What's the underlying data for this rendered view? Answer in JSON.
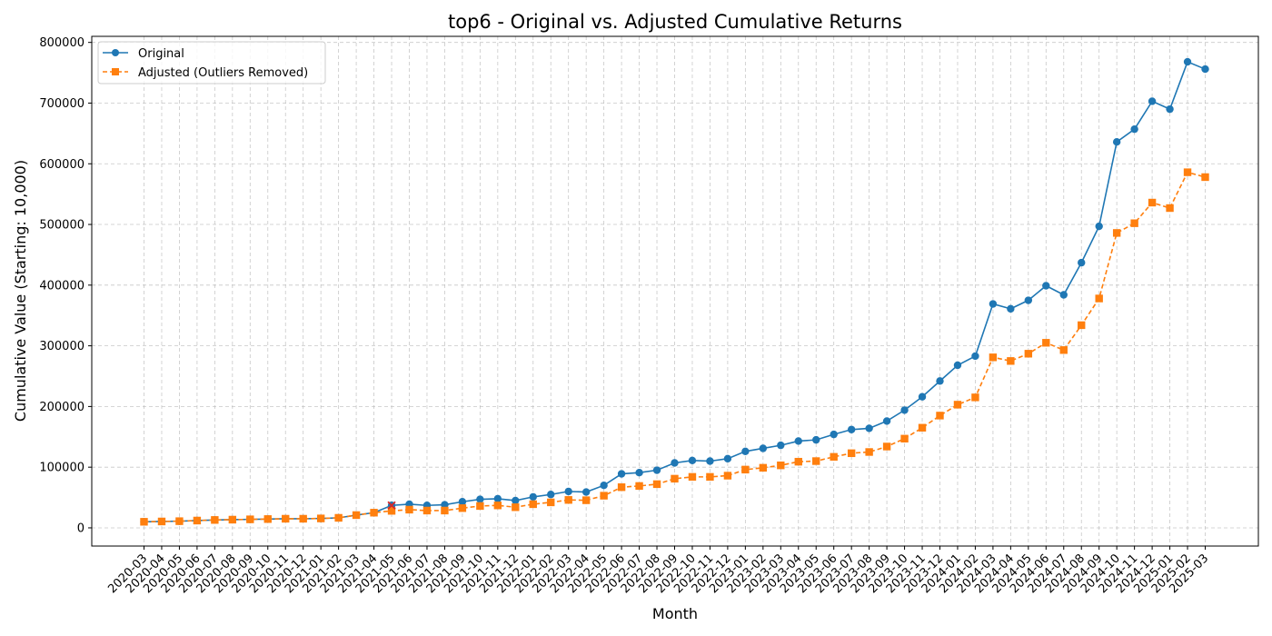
{
  "chart_data": {
    "type": "line",
    "title": "top6 - Original vs. Adjusted Cumulative Returns",
    "xlabel": "Month",
    "ylabel": "Cumulative Value (Starting: 10,000)",
    "ylim": [
      -30000,
      810000
    ],
    "yticks": [
      0,
      100000,
      200000,
      300000,
      400000,
      500000,
      600000,
      700000,
      800000
    ],
    "grid": true,
    "legend_position": "top-left",
    "categories": [
      "2020-03",
      "2020-04",
      "2020-05",
      "2020-06",
      "2020-07",
      "2020-08",
      "2020-09",
      "2020-10",
      "2020-11",
      "2020-12",
      "2021-01",
      "2021-02",
      "2021-03",
      "2021-04",
      "2021-05",
      "2021-06",
      "2021-07",
      "2021-08",
      "2021-09",
      "2021-10",
      "2021-11",
      "2021-12",
      "2022-01",
      "2022-02",
      "2022-03",
      "2022-04",
      "2022-05",
      "2022-06",
      "2022-07",
      "2022-08",
      "2022-09",
      "2022-10",
      "2022-11",
      "2022-12",
      "2023-01",
      "2023-02",
      "2023-03",
      "2023-04",
      "2023-05",
      "2023-06",
      "2023-07",
      "2023-08",
      "2023-09",
      "2023-10",
      "2023-11",
      "2023-12",
      "2024-01",
      "2024-02",
      "2024-03",
      "2024-04",
      "2024-05",
      "2024-06",
      "2024-07",
      "2024-08",
      "2024-09",
      "2024-10",
      "2024-11",
      "2024-12",
      "2025-01",
      "2025-02",
      "2025-03"
    ],
    "series": [
      {
        "name": "Original",
        "color": "#1f77b4",
        "marker": "circle",
        "line_style": "solid",
        "values": [
          10000,
          10500,
          11000,
          12000,
          13000,
          13500,
          14000,
          14500,
          15000,
          15000,
          15500,
          16500,
          21000,
          25000,
          37000,
          39000,
          37000,
          38000,
          43000,
          47000,
          48000,
          45000,
          51000,
          55000,
          60000,
          59000,
          70000,
          89000,
          91000,
          95000,
          107000,
          111000,
          110000,
          114000,
          126000,
          131000,
          136000,
          143000,
          145000,
          154000,
          162000,
          164000,
          176000,
          194000,
          216000,
          242000,
          268000,
          283000,
          369000,
          361000,
          375000,
          399000,
          384000,
          437000,
          497000,
          636000,
          657000,
          703000,
          690000,
          768000,
          756000
        ]
      },
      {
        "name": "Adjusted (Outliers Removed)",
        "color": "#ff7f0e",
        "marker": "square",
        "line_style": "dashed",
        "values": [
          10000,
          10500,
          11000,
          12000,
          13000,
          13500,
          14000,
          14500,
          15000,
          15000,
          15500,
          16500,
          21000,
          25000,
          28000,
          30000,
          28500,
          28500,
          32500,
          36000,
          37000,
          34000,
          39000,
          42000,
          46000,
          45500,
          53000,
          67000,
          69000,
          72000,
          81000,
          84000,
          84000,
          86000,
          96000,
          99000,
          103000,
          109000,
          110000,
          117000,
          123000,
          125000,
          134000,
          147000,
          165000,
          185000,
          203000,
          215000,
          281000,
          275000,
          287000,
          305000,
          293000,
          334000,
          378000,
          486000,
          502000,
          536000,
          527000,
          586000,
          578000
        ]
      }
    ],
    "outlier_markers": [
      {
        "category": "2021-05",
        "value": 37000,
        "symbol": "x",
        "color": "#d62728"
      }
    ]
  }
}
